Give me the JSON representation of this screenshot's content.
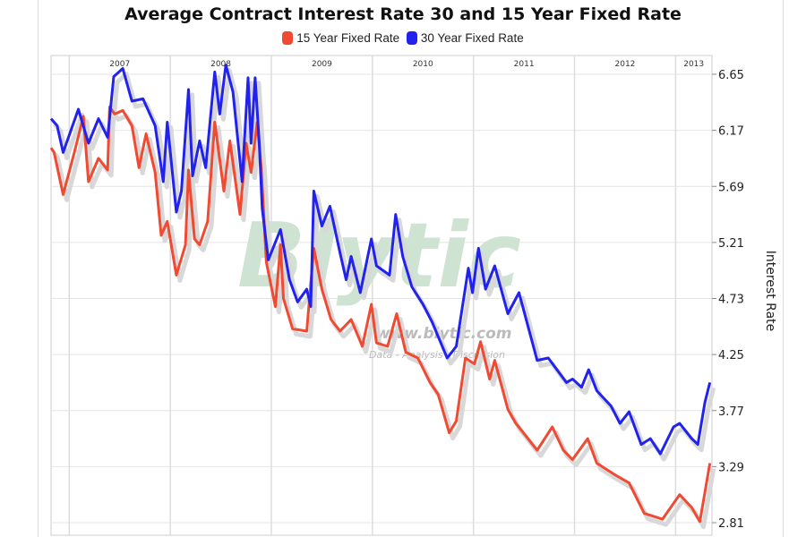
{
  "colors": {
    "series_15": "#f04a32",
    "series_30": "#2222ee",
    "grid": "#e4e4e4",
    "shadow": "#d8d8d8",
    "watermark": "#cfe3d3"
  },
  "watermark": {
    "logo": "Blytic",
    "url": "www.blytic.com",
    "tagline": "Data - Analysis - Discussion"
  },
  "chart_data": {
    "type": "line",
    "title": "Average Contract Interest Rate 30 and 15 Year Fixed Rate",
    "ylabel": "Interest Rate",
    "xlabel": "",
    "y_axis_position": "right",
    "ylim": [
      2.81,
      6.65
    ],
    "yticks": [
      "6.65",
      "6.17",
      "5.69",
      "5.21",
      "4.73",
      "4.25",
      "3.77",
      "3.29",
      "2.81"
    ],
    "xticks": [
      "2007",
      "2008",
      "2009",
      "2010",
      "2011",
      "2012",
      "2013"
    ],
    "xlim": [
      2006.82,
      2013.36
    ],
    "grid": true,
    "legend": "top",
    "series": [
      {
        "name": "15 Year Fixed Rate",
        "color": "#f04a32",
        "x": [
          2006.82,
          2006.85,
          2006.94,
          2007.05,
          2007.14,
          2007.19,
          2007.29,
          2007.38,
          2007.4,
          2007.45,
          2007.53,
          2007.62,
          2007.69,
          2007.76,
          2007.85,
          2007.91,
          2007.97,
          2008.06,
          2008.15,
          2008.18,
          2008.24,
          2008.29,
          2008.37,
          2008.44,
          2008.53,
          2008.59,
          2008.69,
          2008.75,
          2008.8,
          2008.86,
          2008.9,
          2008.95,
          2009.04,
          2009.09,
          2009.12,
          2009.21,
          2009.35,
          2009.42,
          2009.5,
          2009.59,
          2009.68,
          2009.79,
          2009.9,
          2009.99,
          2010.04,
          2010.15,
          2010.24,
          2010.33,
          2010.45,
          2010.57,
          2010.65,
          2010.76,
          2010.83,
          2010.92,
          2011.01,
          2011.07,
          2011.16,
          2011.21,
          2011.34,
          2011.42,
          2011.63,
          2011.78,
          2011.89,
          2011.98,
          2012.13,
          2012.22,
          2012.4,
          2012.54,
          2012.69,
          2012.87,
          2013.04,
          2013.16,
          2013.24,
          2013.34
        ],
        "y": [
          6.02,
          5.98,
          5.62,
          5.98,
          6.29,
          5.73,
          5.93,
          5.83,
          6.37,
          6.31,
          6.34,
          6.21,
          5.85,
          6.14,
          5.81,
          5.27,
          5.39,
          4.93,
          5.19,
          5.83,
          5.24,
          5.19,
          5.39,
          6.24,
          5.65,
          6.08,
          5.45,
          6.06,
          5.81,
          6.24,
          5.85,
          5.04,
          4.66,
          5.19,
          4.73,
          4.47,
          4.45,
          5.16,
          4.81,
          4.55,
          4.45,
          4.55,
          4.32,
          4.68,
          4.35,
          4.32,
          4.6,
          4.27,
          4.22,
          4.01,
          3.91,
          3.58,
          3.68,
          4.22,
          4.17,
          4.36,
          4.04,
          4.2,
          3.78,
          3.66,
          3.43,
          3.63,
          3.43,
          3.35,
          3.53,
          3.32,
          3.22,
          3.15,
          2.89,
          2.84,
          3.05,
          2.94,
          2.82,
          3.32
        ]
      },
      {
        "name": "30 Year Fixed Rate",
        "color": "#2222ee",
        "x": [
          2006.82,
          2006.88,
          2006.94,
          2007.09,
          2007.19,
          2007.29,
          2007.38,
          2007.44,
          2007.53,
          2007.62,
          2007.73,
          2007.85,
          2007.93,
          2007.97,
          2008.06,
          2008.11,
          2008.18,
          2008.22,
          2008.29,
          2008.35,
          2008.44,
          2008.49,
          2008.55,
          2008.62,
          2008.71,
          2008.77,
          2008.8,
          2008.84,
          2008.88,
          2008.91,
          2008.97,
          2009.09,
          2009.18,
          2009.26,
          2009.35,
          2009.39,
          2009.42,
          2009.5,
          2009.58,
          2009.68,
          2009.74,
          2009.79,
          2009.88,
          2009.99,
          2010.04,
          2010.17,
          2010.23,
          2010.3,
          2010.39,
          2010.5,
          2010.59,
          2010.74,
          2010.83,
          2010.95,
          2010.99,
          2011.05,
          2011.12,
          2011.21,
          2011.34,
          2011.45,
          2011.63,
          2011.74,
          2011.92,
          2011.98,
          2012.07,
          2012.14,
          2012.22,
          2012.36,
          2012.45,
          2012.54,
          2012.66,
          2012.75,
          2012.85,
          2012.98,
          2013.04,
          2013.16,
          2013.22,
          2013.29,
          2013.34
        ],
        "y": [
          6.27,
          6.21,
          5.98,
          6.35,
          6.06,
          6.27,
          6.11,
          6.63,
          6.7,
          6.42,
          6.44,
          6.21,
          5.73,
          6.24,
          5.47,
          5.65,
          6.52,
          5.78,
          6.08,
          5.85,
          6.67,
          6.31,
          6.73,
          6.5,
          5.73,
          6.62,
          6.06,
          6.62,
          6.06,
          5.5,
          5.06,
          5.32,
          4.89,
          4.7,
          4.81,
          4.66,
          5.65,
          5.35,
          5.52,
          5.12,
          4.89,
          5.09,
          4.78,
          5.24,
          5.01,
          4.93,
          5.45,
          5.09,
          4.83,
          4.68,
          4.53,
          4.22,
          4.32,
          4.99,
          4.78,
          5.16,
          4.81,
          5.01,
          4.6,
          4.78,
          4.2,
          4.22,
          4.01,
          4.04,
          3.97,
          4.12,
          3.94,
          3.81,
          3.66,
          3.76,
          3.48,
          3.53,
          3.4,
          3.63,
          3.66,
          3.53,
          3.48,
          3.84,
          4.01
        ]
      }
    ]
  }
}
